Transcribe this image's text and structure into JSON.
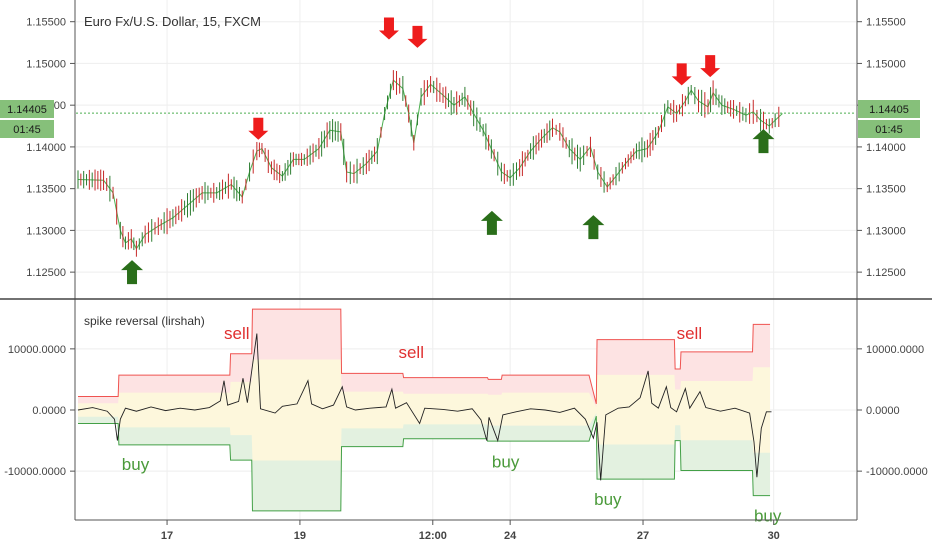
{
  "colors": {
    "up": "#2e7d32",
    "down": "#c62828",
    "sell_arrow": "#ee1c1c",
    "buy_arrow": "#2a6e1a",
    "upper_band": "#ef5350",
    "lower_band": "#43a047",
    "price_line": "#4caf50",
    "tag_bg": "#86c07a"
  },
  "chart_data": [
    {
      "type": "candlestick",
      "title": "Euro Fx/U.S. Dollar, 15, FXCM",
      "ylim": [
        1.1225,
        1.157
      ],
      "yticks": [
        "1.12500",
        "1.13000",
        "1.13500",
        "1.14000",
        "1.14500",
        "1.15000",
        "1.15500"
      ],
      "ytick_values": [
        1.125,
        1.13,
        1.135,
        1.14,
        1.145,
        1.15,
        1.155
      ],
      "x_range": [
        0,
        100
      ],
      "xticks": [
        {
          "label": "17",
          "x": 12.2
        },
        {
          "label": "19",
          "x": 30.4
        },
        {
          "label": "12:00",
          "x": 48.6
        },
        {
          "label": "24",
          "x": 59.2
        },
        {
          "label": "27",
          "x": 77.4
        },
        {
          "label": "30",
          "x": 95.3
        }
      ],
      "last_price": "1.14405",
      "last_price_value": 1.14405,
      "countdown": "01:45",
      "price_path": [
        [
          0,
          1.1361
        ],
        [
          3.5,
          1.136
        ],
        [
          4.8,
          1.1345
        ],
        [
          5.8,
          1.13
        ],
        [
          6.5,
          1.1285
        ],
        [
          7.3,
          1.129
        ],
        [
          8.0,
          1.1278
        ],
        [
          9.2,
          1.1295
        ],
        [
          11.0,
          1.1305
        ],
        [
          13.0,
          1.1315
        ],
        [
          15.0,
          1.133
        ],
        [
          17.0,
          1.1345
        ],
        [
          19.0,
          1.1345
        ],
        [
          21.0,
          1.1355
        ],
        [
          22.5,
          1.134
        ],
        [
          23.5,
          1.137
        ],
        [
          24.5,
          1.1395
        ],
        [
          25.2,
          1.1398
        ],
        [
          26.5,
          1.1375
        ],
        [
          28.0,
          1.1365
        ],
        [
          29.5,
          1.1385
        ],
        [
          31.0,
          1.1385
        ],
        [
          33.0,
          1.1398
        ],
        [
          34.5,
          1.142
        ],
        [
          36.0,
          1.1418
        ],
        [
          36.8,
          1.137
        ],
        [
          37.8,
          1.1368
        ],
        [
          39.5,
          1.138
        ],
        [
          41.0,
          1.1395
        ],
        [
          42.0,
          1.144
        ],
        [
          43.2,
          1.148
        ],
        [
          44.5,
          1.147
        ],
        [
          45.3,
          1.144
        ],
        [
          46.0,
          1.1405
        ],
        [
          47.0,
          1.146
        ],
        [
          48.3,
          1.1475
        ],
        [
          50.0,
          1.1462
        ],
        [
          51.5,
          1.145
        ],
        [
          53.0,
          1.146
        ],
        [
          54.2,
          1.144
        ],
        [
          55.5,
          1.142
        ],
        [
          57.0,
          1.139
        ],
        [
          58.0,
          1.137
        ],
        [
          59.2,
          1.1363
        ],
        [
          60.5,
          1.1375
        ],
        [
          62.0,
          1.1395
        ],
        [
          63.5,
          1.141
        ],
        [
          65.0,
          1.1423
        ],
        [
          66.0,
          1.1418
        ],
        [
          67.3,
          1.1398
        ],
        [
          68.8,
          1.1385
        ],
        [
          70.2,
          1.14
        ],
        [
          71.2,
          1.137
        ],
        [
          72.5,
          1.1352
        ],
        [
          73.7,
          1.1365
        ],
        [
          75.0,
          1.138
        ],
        [
          76.5,
          1.1395
        ],
        [
          78.0,
          1.1398
        ],
        [
          79.5,
          1.1418
        ],
        [
          80.8,
          1.1448
        ],
        [
          82.0,
          1.144
        ],
        [
          83.2,
          1.1455
        ],
        [
          84.0,
          1.1468
        ],
        [
          85.0,
          1.1455
        ],
        [
          86.3,
          1.1448
        ],
        [
          87.0,
          1.1465
        ],
        [
          88.2,
          1.145
        ],
        [
          89.8,
          1.1445
        ],
        [
          91.5,
          1.1438
        ],
        [
          92.5,
          1.1442
        ],
        [
          93.5,
          1.1432
        ],
        [
          94.7,
          1.1425
        ],
        [
          95.5,
          1.1432
        ],
        [
          96.5,
          1.144
        ]
      ],
      "sell_arrows": [
        {
          "x": 24.7,
          "y": 1.1435
        },
        {
          "x": 42.6,
          "y": 1.1555
        },
        {
          "x": 46.5,
          "y": 1.1545
        },
        {
          "x": 82.7,
          "y": 1.15
        },
        {
          "x": 86.6,
          "y": 1.151
        }
      ],
      "buy_arrows": [
        {
          "x": 7.4,
          "y": 1.1238
        },
        {
          "x": 56.7,
          "y": 1.1297
        },
        {
          "x": 70.6,
          "y": 1.1292
        },
        {
          "x": 93.9,
          "y": 1.1395
        }
      ]
    },
    {
      "type": "area",
      "title": "spike reversal (lirshah)",
      "ylim": [
        -17500,
        17500
      ],
      "yticks": [
        "-10000.0000",
        "0.0000",
        "10000.0000"
      ],
      "ytick_values": [
        -10000,
        0,
        10000
      ],
      "x_range": [
        0,
        100
      ],
      "upper_band": [
        [
          0,
          2200
        ],
        [
          5.5,
          2200
        ],
        [
          5.6,
          5700
        ],
        [
          20.8,
          5700
        ],
        [
          20.9,
          9200
        ],
        [
          23.8,
          9200
        ],
        [
          23.9,
          16500
        ],
        [
          36.0,
          16500
        ],
        [
          36.1,
          6000
        ],
        [
          44.5,
          6000
        ],
        [
          44.6,
          5300
        ],
        [
          56.0,
          5300
        ],
        [
          56.1,
          5300
        ],
        [
          56.2,
          5000
        ],
        [
          58.0,
          5000
        ],
        [
          58.1,
          5700
        ],
        [
          70.0,
          5700
        ],
        [
          71.0,
          1000
        ],
        [
          71.1,
          11500
        ],
        [
          81.7,
          11500
        ],
        [
          81.8,
          6700
        ],
        [
          82.5,
          6700
        ],
        [
          82.6,
          9500
        ],
        [
          92.4,
          9500
        ],
        [
          92.5,
          14000
        ],
        [
          94.8,
          14000
        ]
      ],
      "lower_band": [
        [
          0,
          -2200
        ],
        [
          5.5,
          -2200
        ],
        [
          5.6,
          -5700
        ],
        [
          20.8,
          -5700
        ],
        [
          20.9,
          -8200
        ],
        [
          23.8,
          -8200
        ],
        [
          23.9,
          -16500
        ],
        [
          36.0,
          -16500
        ],
        [
          36.1,
          -6000
        ],
        [
          44.5,
          -6000
        ],
        [
          44.6,
          -4700
        ],
        [
          56.0,
          -4700
        ],
        [
          56.1,
          -5100
        ],
        [
          70.0,
          -5100
        ],
        [
          71.0,
          -1000
        ],
        [
          71.1,
          -11300
        ],
        [
          81.7,
          -11300
        ],
        [
          81.8,
          -5000
        ],
        [
          82.5,
          -5000
        ],
        [
          82.6,
          -9900
        ],
        [
          92.4,
          -9900
        ],
        [
          92.5,
          -14000
        ],
        [
          94.8,
          -14000
        ]
      ],
      "oscillator": [
        [
          0,
          0
        ],
        [
          2,
          400
        ],
        [
          4,
          -200
        ],
        [
          5,
          -1500
        ],
        [
          5.4,
          -5000
        ],
        [
          5.8,
          -1500
        ],
        [
          6.5,
          300
        ],
        [
          8,
          -200
        ],
        [
          10,
          500
        ],
        [
          12,
          -100
        ],
        [
          14,
          300
        ],
        [
          16,
          0
        ],
        [
          18,
          400
        ],
        [
          19.5,
          1500
        ],
        [
          20,
          4800
        ],
        [
          20.5,
          800
        ],
        [
          22,
          1400
        ],
        [
          22.6,
          5200
        ],
        [
          23.2,
          1200
        ],
        [
          24.5,
          12500
        ],
        [
          25,
          200
        ],
        [
          27,
          -500
        ],
        [
          28,
          600
        ],
        [
          30,
          1000
        ],
        [
          31.5,
          4800
        ],
        [
          32,
          1000
        ],
        [
          33.5,
          200
        ],
        [
          35,
          800
        ],
        [
          36.2,
          3800
        ],
        [
          36.8,
          500
        ],
        [
          38,
          0
        ],
        [
          40,
          300
        ],
        [
          42.2,
          500
        ],
        [
          43,
          3400
        ],
        [
          43.5,
          300
        ],
        [
          45,
          1200
        ],
        [
          46.8,
          -2200
        ],
        [
          47.5,
          300
        ],
        [
          50,
          100
        ],
        [
          52,
          -200
        ],
        [
          54,
          200
        ],
        [
          55.2,
          -1600
        ],
        [
          56,
          -5000
        ],
        [
          56.3,
          -1200
        ],
        [
          57.5,
          -5000
        ],
        [
          58.2,
          -800
        ],
        [
          60,
          -300
        ],
        [
          62,
          200
        ],
        [
          64,
          0
        ],
        [
          66,
          -400
        ],
        [
          68,
          300
        ],
        [
          69.5,
          -1500
        ],
        [
          70.6,
          -4600
        ],
        [
          71.1,
          -2000
        ],
        [
          71.6,
          -11500
        ],
        [
          72.3,
          -800
        ],
        [
          74,
          300
        ],
        [
          75.5,
          500
        ],
        [
          77,
          2000
        ],
        [
          78.1,
          6400
        ],
        [
          78.6,
          1100
        ],
        [
          79.5,
          300
        ],
        [
          80.6,
          3800
        ],
        [
          81.2,
          400
        ],
        [
          82,
          -300
        ],
        [
          83.2,
          3500
        ],
        [
          83.8,
          300
        ],
        [
          85.2,
          3000
        ],
        [
          86,
          400
        ],
        [
          88,
          -200
        ],
        [
          90,
          300
        ],
        [
          92,
          -500
        ],
        [
          92.6,
          -5200
        ],
        [
          93,
          -11000
        ],
        [
          93.6,
          -3000
        ],
        [
          94.3,
          -300
        ],
        [
          95,
          -300
        ]
      ],
      "labels": [
        {
          "text": "sell",
          "kind": "sell",
          "x": 20.0,
          "y": 11600
        },
        {
          "text": "sell",
          "kind": "sell",
          "x": 43.9,
          "y": 8500
        },
        {
          "text": "sell",
          "kind": "sell",
          "x": 82.0,
          "y": 11600
        },
        {
          "text": "buy",
          "kind": "buy",
          "x": 6.0,
          "y": -9800
        },
        {
          "text": "buy",
          "kind": "buy",
          "x": 56.7,
          "y": -9400
        },
        {
          "text": "buy",
          "kind": "buy",
          "x": 70.7,
          "y": -15500
        },
        {
          "text": "buy",
          "kind": "buy",
          "x": 92.6,
          "y": -18200
        }
      ]
    }
  ]
}
